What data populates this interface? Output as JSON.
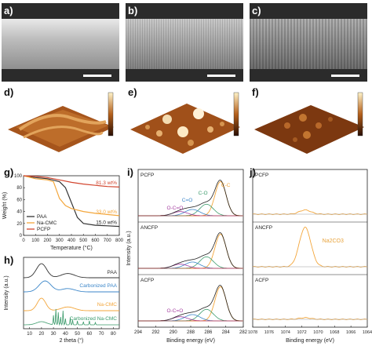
{
  "panels": {
    "a": {
      "label": "a)"
    },
    "b": {
      "label": "b)"
    },
    "c": {
      "label": "c)"
    },
    "d": {
      "label": "d)"
    },
    "e": {
      "label": "e)"
    },
    "f": {
      "label": "f)"
    },
    "g": {
      "label": "g)"
    },
    "h": {
      "label": "h)"
    },
    "i": {
      "label": "i)"
    },
    "j": {
      "label": "j)"
    }
  },
  "colors": {
    "PAA": "#333333",
    "NaCMC": "#f3a63b",
    "PCFP": "#e8862c",
    "CarbPAA": "#3b86c9",
    "CarbNaCMC": "#3a9a6a",
    "red": "#d2452e"
  },
  "chart_data": [
    {
      "panel": "g",
      "type": "line",
      "xlabel": "Temperature (°C)",
      "ylabel": "Weight (%)",
      "xlim": [
        0,
        800
      ],
      "ylim": [
        0,
        100
      ],
      "xticks": [
        "0",
        "100",
        "200",
        "300",
        "400",
        "500",
        "600",
        "700",
        "800"
      ],
      "yticks": [
        "0",
        "20",
        "40",
        "60",
        "80",
        "100"
      ],
      "series": [
        {
          "name": "PAA",
          "x": [
            0,
            100,
            200,
            300,
            350,
            400,
            450,
            500,
            600,
            700,
            800
          ],
          "y": [
            100,
            97,
            95,
            90,
            80,
            55,
            30,
            20,
            17,
            16,
            15
          ]
        },
        {
          "name": "Na-CMC",
          "x": [
            0,
            100,
            200,
            250,
            300,
            350,
            400,
            500,
            600,
            700,
            800
          ],
          "y": [
            100,
            95,
            93,
            90,
            62,
            50,
            45,
            40,
            37,
            35,
            33
          ]
        },
        {
          "name": "PCFP",
          "x": [
            0,
            100,
            200,
            300,
            400,
            500,
            600,
            700,
            800
          ],
          "y": [
            100,
            99,
            97,
            93,
            89,
            86,
            84,
            82,
            81
          ]
        }
      ],
      "annotations": [
        "81.3 wt%",
        "33.0 wt%",
        "15.0 wt%"
      ],
      "legend": "bottom-left"
    },
    {
      "panel": "h",
      "type": "line",
      "xlabel": "2 theta (°)",
      "ylabel": "Intensity (a.u.)",
      "xticks": [
        "10",
        "20",
        "30",
        "40",
        "50",
        "60",
        "70",
        "80"
      ],
      "series": [
        {
          "name": "PAA"
        },
        {
          "name": "Carbonized PAA"
        },
        {
          "name": "Na-CMC"
        },
        {
          "name": "Carbonized Na-CMC"
        }
      ]
    },
    {
      "panel": "i",
      "type": "line",
      "xlabel": "Binding energy (eV)",
      "ylabel": "Intensity (a.u.)",
      "xlim": [
        294,
        282
      ],
      "xticks": [
        "294",
        "292",
        "290",
        "288",
        "286",
        "284",
        "282"
      ],
      "subpanels": [
        "PCFP",
        "ANCFP",
        "ACFP"
      ],
      "peaks": [
        "O-C=O",
        "C=O",
        "C-O",
        "C-C"
      ]
    },
    {
      "panel": "j",
      "type": "line",
      "xlabel": "Binding energy (eV)",
      "xlim": [
        1078,
        1064
      ],
      "xticks": [
        "1078",
        "1076",
        "1074",
        "1072",
        "1070",
        "1068",
        "1066",
        "1064"
      ],
      "subpanels": [
        "PCFP",
        "ANCFP",
        "ACFP"
      ],
      "peak_label": "Na2CO3"
    }
  ]
}
